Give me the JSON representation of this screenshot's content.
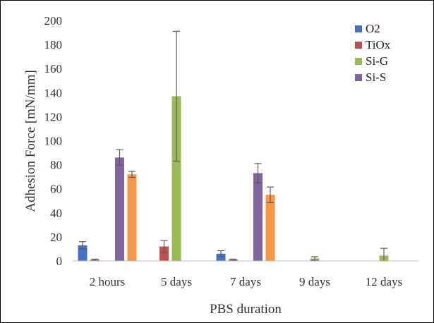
{
  "chart_data": {
    "type": "bar",
    "title": "",
    "xlabel": "PBS duration",
    "ylabel": "Adhesion Force [mN/mm]",
    "ylim": [
      0,
      200
    ],
    "yticks": [
      0,
      20,
      40,
      60,
      80,
      100,
      120,
      140,
      160,
      180,
      200
    ],
    "categories": [
      "2 hours",
      "5 days",
      "7 days",
      "9 days",
      "12 days"
    ],
    "grid": false,
    "legend_position": "top-right",
    "series": [
      {
        "name": "O2",
        "color": "#4472C4",
        "values": [
          13,
          0,
          6,
          0,
          0
        ],
        "errors": [
          3,
          0,
          2.5,
          0,
          0
        ]
      },
      {
        "name": "TiOx",
        "color": "#C0504D",
        "values": [
          1,
          12,
          1,
          0,
          0
        ],
        "errors": [
          0.5,
          5,
          0.5,
          0,
          0
        ]
      },
      {
        "name": "Si-G",
        "color": "#9BBB59",
        "values": [
          0,
          137,
          0,
          2,
          4.5
        ],
        "errors": [
          0,
          54,
          0,
          1.5,
          6
        ]
      },
      {
        "name": "Si-S",
        "color": "#8064A2",
        "values": [
          86,
          0,
          73,
          0,
          0
        ],
        "errors": [
          6.5,
          0,
          8,
          0,
          0
        ]
      },
      {
        "name": "",
        "color": "#F79646",
        "values": [
          72,
          0,
          55,
          0,
          0
        ],
        "errors": [
          2.5,
          0,
          6.5,
          0,
          0
        ]
      }
    ]
  }
}
